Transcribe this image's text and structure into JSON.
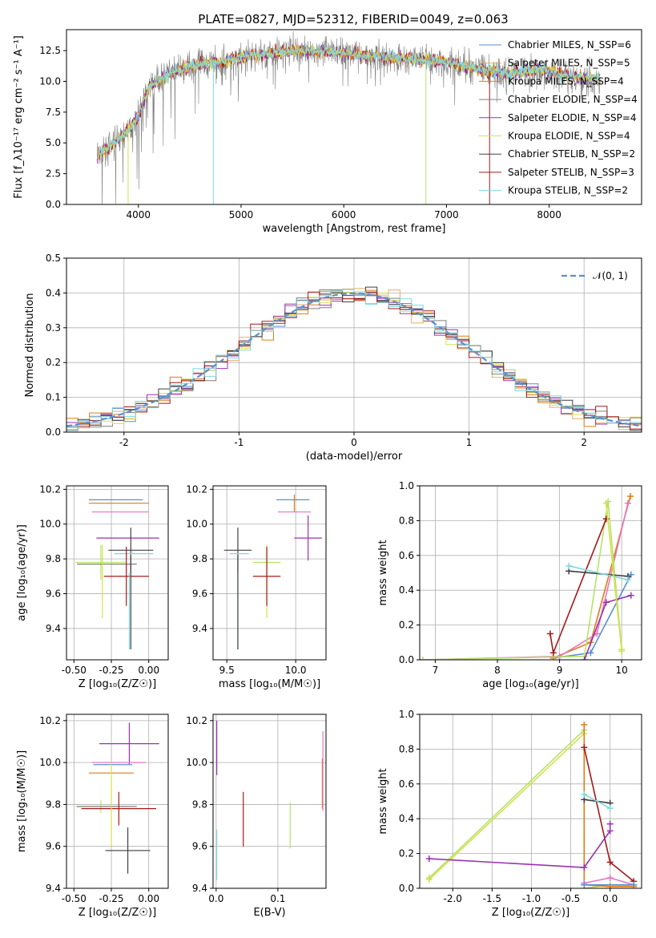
{
  "figure_title": "PLATE=0827, MJD=52312, FIBERID=0049, z=0.063",
  "legend_symbol": "𝒩(0, 1)",
  "colors": {
    "Chabrier MILES": "#5b8fd1",
    "Salpeter MILES": "#e8aa6a",
    "Kroupa MILES": "#e07c16",
    "Chabrier ELODIE": "#7f7f7f",
    "Salpeter ELODIE": "#9b31b0",
    "Kroupa ELODIE": "#d6e04a",
    "Chabrier STELIB": "#404040",
    "Salpeter STELIB": "#a31a1a",
    "Kroupa STELIB": "#7fd8e0",
    "pink": "#e377c2",
    "lime": "#b5e36a"
  },
  "chart_data": [
    {
      "type": "line",
      "title": "PLATE=0827, MJD=52312, FIBERID=0049, z=0.063",
      "xlabel": "wavelength [Angstrom, rest frame]",
      "ylabel": "Flux [f_λ10⁻¹⁷ erg cm⁻² s⁻¹ A⁻¹]",
      "xlim": [
        3300,
        8900
      ],
      "ylim": [
        0,
        14.2
      ],
      "xticks": [
        4000,
        5000,
        6000,
        7000,
        8000
      ],
      "yticks": [
        0.0,
        2.5,
        5.0,
        7.5,
        10.0,
        12.5
      ],
      "legend_position": "upper right",
      "legend": [
        "Chabrier MILES, N_SSP=6",
        "Salpeter MILES, N_SSP=5",
        "Kroupa MILES, N_SSP=4",
        "Chabrier ELODIE, N_SSP=4",
        "Salpeter ELODIE, N_SSP=4",
        "Kroupa ELODIE, N_SSP=4",
        "Chabrier STELIB, N_SSP=2",
        "Salpeter STELIB, N_SSP=3",
        "Kroupa STELIB, N_SSP=2"
      ],
      "continuum": {
        "x": [
          3600,
          3700,
          3800,
          3900,
          4000,
          4100,
          4300,
          4500,
          4800,
          5100,
          5500,
          5900,
          6300,
          6700,
          7000,
          7300,
          7600,
          7900,
          8200,
          8500
        ],
        "y": [
          4.0,
          4.6,
          5.2,
          6.0,
          7.2,
          9.5,
          10.6,
          11.3,
          11.6,
          12.1,
          12.5,
          12.4,
          12.1,
          11.8,
          11.6,
          11.0,
          10.6,
          11.0,
          10.4,
          10.2
        ]
      },
      "dips": [
        {
          "x": 3900,
          "y": 0.0
        },
        {
          "x": 4730,
          "y": 0.0
        },
        {
          "x": 6800,
          "y": 0.0
        },
        {
          "x": 7420,
          "y": 0.0
        }
      ]
    },
    {
      "type": "line",
      "xlabel": "(data-model)/error",
      "ylabel": "Normed distribution",
      "xlim": [
        -2.5,
        2.5
      ],
      "ylim": [
        0,
        0.5
      ],
      "xticks": [
        -2,
        -1,
        0,
        1,
        2
      ],
      "yticks": [
        0.0,
        0.1,
        0.2,
        0.3,
        0.4,
        0.5
      ],
      "legend_position": "upper right",
      "legend": [
        "𝒩(0, 1)"
      ],
      "grid": true,
      "bin_width": 0.1,
      "bin_start": -2.5,
      "histogram_series": [
        "Chabrier MILES",
        "Salpeter MILES",
        "Kroupa MILES",
        "Chabrier ELODIE",
        "Salpeter ELODIE",
        "Kroupa ELODIE",
        "Chabrier STELIB",
        "Salpeter STELIB",
        "Kroupa STELIB"
      ]
    },
    {
      "type": "scatter",
      "xlabel": "Z [log₁₀(Z/Z☉)]",
      "ylabel": "age  [log₁₀(age/yr)]",
      "xlim": [
        -0.55,
        0.13
      ],
      "ylim": [
        9.22,
        10.22
      ],
      "xticks": [
        -0.5,
        -0.25,
        0.0
      ],
      "yticks": [
        9.4,
        9.6,
        9.8,
        10.0,
        10.2
      ],
      "grid": true,
      "points": [
        {
          "s": "Chabrier MILES",
          "x": -0.22,
          "y": 10.14,
          "ex": 0.18,
          "ey": 0.0
        },
        {
          "s": "Kroupa MILES",
          "x": -0.2,
          "y": 10.12,
          "ex": 0.2,
          "ey": 0.0
        },
        {
          "s": "pink",
          "x": -0.19,
          "y": 10.07,
          "ex": 0.19,
          "ey": 0.0
        },
        {
          "s": "Salpeter ELODIE",
          "x": -0.14,
          "y": 9.92,
          "ex": 0.21,
          "ey": 0.0
        },
        {
          "s": "Chabrier STELIB",
          "x": -0.12,
          "y": 9.85,
          "ex": 0.15,
          "ey": 0.13
        },
        {
          "s": "Kroupa STELIB",
          "x": -0.1,
          "y": 9.83,
          "ex": 0.13,
          "ey": 0.0
        },
        {
          "s": "lime",
          "x": -0.32,
          "y": 9.78,
          "ex": 0.17,
          "ey": 0.1
        },
        {
          "s": "Chabrier ELODIE",
          "x": -0.28,
          "y": 9.77,
          "ex": 0.2,
          "ey": 0.0
        },
        {
          "s": "Kroupa ELODIE",
          "x": -0.31,
          "y": 9.67,
          "ex": 0.0,
          "ey": 0.21
        },
        {
          "s": "Salpeter STELIB",
          "x": -0.15,
          "y": 9.7,
          "ex": 0.15,
          "ey": 0.17
        },
        {
          "s": "Kroupa STELIB",
          "x": -0.13,
          "y": 9.5,
          "ex": 0.0,
          "ey": 0.22
        },
        {
          "s": "Chabrier STELIB",
          "x": -0.12,
          "y": 9.55,
          "ex": 0.0,
          "ey": 0.27
        }
      ]
    },
    {
      "type": "scatter",
      "xlabel": "mass [log₁₀(M/M☉)]",
      "xlim": [
        9.4,
        10.22
      ],
      "ylim": [
        9.22,
        10.22
      ],
      "xticks": [
        9.5,
        10.0
      ],
      "yticks": [
        9.4,
        9.6,
        9.8,
        10.0,
        10.2
      ],
      "grid": true,
      "points": [
        {
          "s": "Chabrier MILES",
          "x": 9.98,
          "y": 10.14,
          "ex": 0.12,
          "ey": 0.0
        },
        {
          "s": "Kroupa MILES",
          "x": 9.99,
          "y": 10.12,
          "ex": 0.0,
          "ey": 0.05
        },
        {
          "s": "pink",
          "x": 9.99,
          "y": 10.07,
          "ex": 0.12,
          "ey": 0.0
        },
        {
          "s": "Salpeter ELODIE",
          "x": 10.09,
          "y": 9.92,
          "ex": 0.1,
          "ey": 0.13
        },
        {
          "s": "Chabrier STELIB",
          "x": 9.58,
          "y": 9.85,
          "ex": 0.1,
          "ey": 0.13
        },
        {
          "s": "Kroupa STELIB",
          "x": 9.59,
          "y": 9.83,
          "ex": 0.07,
          "ey": 0.0
        },
        {
          "s": "lime",
          "x": 9.79,
          "y": 9.78,
          "ex": 0.1,
          "ey": 0.1
        },
        {
          "s": "Kroupa ELODIE",
          "x": 9.79,
          "y": 9.67,
          "ex": 0.0,
          "ey": 0.21
        },
        {
          "s": "Salpeter STELIB",
          "x": 9.79,
          "y": 9.7,
          "ex": 0.1,
          "ey": 0.17
        },
        {
          "s": "Kroupa STELIB",
          "x": 9.58,
          "y": 9.5,
          "ex": 0.0,
          "ey": 0.22
        },
        {
          "s": "Chabrier STELIB",
          "x": 9.58,
          "y": 9.55,
          "ex": 0.0,
          "ey": 0.27
        }
      ]
    },
    {
      "type": "line",
      "xlabel": "age  [log₁₀(age/yr)]",
      "ylabel": "mass weight",
      "xlim": [
        6.75,
        10.32
      ],
      "ylim": [
        0,
        1.0
      ],
      "xticks": [
        7,
        8,
        9,
        10
      ],
      "yticks": [
        0.0,
        0.2,
        0.4,
        0.6,
        0.8,
        1.0
      ],
      "grid": true,
      "series": [
        {
          "s": "Chabrier MILES",
          "x": [
            8.9,
            9.5,
            10.15
          ],
          "y": [
            0.01,
            0.04,
            0.49
          ]
        },
        {
          "s": "Kroupa MILES",
          "x": [
            8.9,
            9.5,
            10.14
          ],
          "y": [
            0.01,
            0.1,
            0.94
          ]
        },
        {
          "s": "pink",
          "x": [
            6.8,
            9.0,
            9.6,
            10.1
          ],
          "y": [
            0.0,
            0.02,
            0.15,
            0.9
          ]
        },
        {
          "s": "lime",
          "x": [
            6.8,
            9.4,
            9.78,
            10.0
          ],
          "y": [
            0.0,
            0.02,
            0.91,
            0.06
          ]
        },
        {
          "s": "Salpeter STELIB",
          "x": [
            8.85,
            8.9,
            9.75
          ],
          "y": [
            0.15,
            0.04,
            0.81
          ]
        },
        {
          "s": "Salpeter ELODIE",
          "x": [
            9.4,
            9.75,
            10.15
          ],
          "y": [
            0.0,
            0.33,
            0.37
          ]
        },
        {
          "s": "Chabrier STELIB",
          "x": [
            9.15,
            10.1
          ],
          "y": [
            0.51,
            0.48
          ]
        },
        {
          "s": "Kroupa STELIB",
          "x": [
            9.15,
            10.1
          ],
          "y": [
            0.54,
            0.46
          ]
        },
        {
          "s": "Kroupa ELODIE",
          "x": [
            9.75,
            10.0
          ],
          "y": [
            0.9,
            0.05
          ]
        }
      ]
    },
    {
      "type": "scatter",
      "xlabel": "Z [log₁₀(Z/Z☉)]",
      "ylabel": "mass [log₁₀(M/M☉)]",
      "xlim": [
        -0.55,
        0.13
      ],
      "ylim": [
        9.4,
        10.23
      ],
      "xticks": [
        -0.5,
        -0.25,
        0.0
      ],
      "yticks": [
        9.4,
        9.6,
        9.8,
        10.0,
        10.2
      ],
      "grid": true,
      "points": [
        {
          "s": "Salpeter ELODIE",
          "x": -0.13,
          "y": 10.09,
          "ex": 0.2,
          "ey": 0.1
        },
        {
          "s": "pink",
          "x": -0.2,
          "y": 10.0,
          "ex": 0.18,
          "ey": 0.0
        },
        {
          "s": "Chabrier MILES",
          "x": -0.24,
          "y": 9.99,
          "ex": 0.13,
          "ey": 0.0
        },
        {
          "s": "Kroupa MILES",
          "x": -0.25,
          "y": 9.95,
          "ex": 0.15,
          "ey": 0.0
        },
        {
          "s": "lime",
          "x": -0.32,
          "y": 9.79,
          "ex": 0.17,
          "ey": 0.03
        },
        {
          "s": "Chabrier ELODIE",
          "x": -0.28,
          "y": 9.79,
          "ex": 0.2,
          "ey": 0.0
        },
        {
          "s": "Salpeter STELIB",
          "x": -0.2,
          "y": 9.78,
          "ex": 0.25,
          "ey": 0.08
        },
        {
          "s": "Kroupa STELIB",
          "x": -0.14,
          "y": 9.58,
          "ex": 0.14,
          "ey": 0.0
        },
        {
          "s": "Chabrier STELIB",
          "x": -0.14,
          "y": 9.58,
          "ex": 0.15,
          "ey": 0.11
        },
        {
          "s": "Kroupa ELODIE",
          "x": -0.25,
          "y": 9.8,
          "ex": 0.0,
          "ey": 0.2
        }
      ]
    },
    {
      "type": "scatter",
      "xlabel": "E(B-V)",
      "xlim": [
        -0.005,
        0.178
      ],
      "ylim": [
        9.4,
        10.23
      ],
      "xticks": [
        0.0,
        0.1
      ],
      "yticks": [
        9.4,
        9.6,
        9.8,
        10.0,
        10.2
      ],
      "grid": true,
      "points": [
        {
          "s": "Salpeter ELODIE",
          "x": 0.001,
          "y": 10.07,
          "ex": 0.0,
          "ey": 0.13
        },
        {
          "s": "Kroupa STELIB",
          "x": 0.001,
          "y": 9.56,
          "ex": 0.0,
          "ey": 0.12
        },
        {
          "s": "Salpeter STELIB",
          "x": 0.044,
          "y": 9.73,
          "ex": 0.0,
          "ey": 0.13
        },
        {
          "s": "lime",
          "x": 0.12,
          "y": 9.7,
          "ex": 0.0,
          "ey": 0.11
        },
        {
          "s": "Kroupa MILES",
          "x": 0.172,
          "y": 9.9,
          "ex": 0.0,
          "ey": 0.12
        },
        {
          "s": "pink",
          "x": 0.173,
          "y": 9.96,
          "ex": 0.0,
          "ey": 0.19
        }
      ]
    },
    {
      "type": "line",
      "xlabel": "Z [log₁₀(Z/Z☉)]",
      "ylabel": "mass weight",
      "xlim": [
        -2.42,
        0.4
      ],
      "ylim": [
        0,
        1.0
      ],
      "xticks": [
        -2.0,
        -1.5,
        -1.0,
        -0.5,
        0.0
      ],
      "yticks": [
        0.0,
        0.2,
        0.4,
        0.6,
        0.8,
        1.0
      ],
      "grid": true,
      "series": [
        {
          "s": "lime",
          "x": [
            -2.3,
            -0.33,
            -0.33,
            0.0,
            0.3
          ],
          "y": [
            0.06,
            0.91,
            0.0,
            0.02,
            0.01
          ]
        },
        {
          "s": "Kroupa ELODIE",
          "x": [
            -2.3,
            -0.33
          ],
          "y": [
            0.05,
            0.89
          ]
        },
        {
          "s": "Kroupa MILES",
          "x": [
            -0.33,
            -0.33,
            0.0,
            0.3
          ],
          "y": [
            0.94,
            0.02,
            0.01,
            0.01
          ]
        },
        {
          "s": "Salpeter STELIB",
          "x": [
            -0.33,
            0.0,
            0.3
          ],
          "y": [
            0.81,
            0.15,
            0.04
          ]
        },
        {
          "s": "Salpeter ELODIE",
          "x": [
            -2.3,
            -0.33,
            0.0,
            0.0
          ],
          "y": [
            0.17,
            0.12,
            0.33,
            0.37
          ]
        },
        {
          "s": "Chabrier STELIB",
          "x": [
            -0.33,
            0.0
          ],
          "y": [
            0.51,
            0.49
          ]
        },
        {
          "s": "Kroupa STELIB",
          "x": [
            -0.33,
            0.0
          ],
          "y": [
            0.54,
            0.46
          ]
        },
        {
          "s": "pink",
          "x": [
            -0.33,
            0.0,
            0.3
          ],
          "y": [
            0.03,
            0.06,
            0.02
          ]
        },
        {
          "s": "Chabrier MILES",
          "x": [
            -0.33,
            0.3
          ],
          "y": [
            0.02,
            0.02
          ]
        }
      ]
    }
  ]
}
